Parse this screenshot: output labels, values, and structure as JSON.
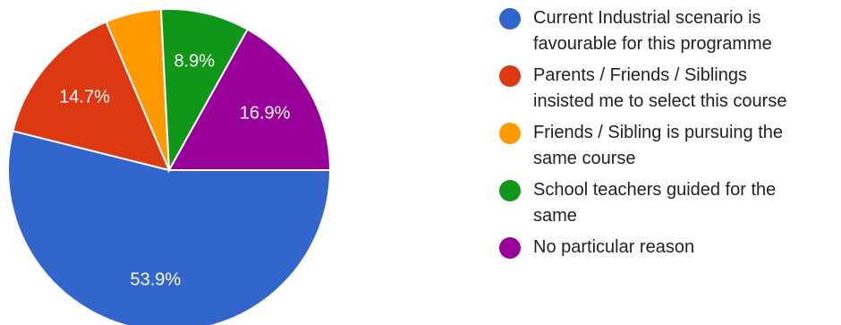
{
  "chart_data": {
    "type": "pie",
    "slices": [
      {
        "label": "Current Industrial scenario is\nfavourable for this programme",
        "value": 53.9,
        "percent_label": "53.9%",
        "color": "#3366cc"
      },
      {
        "label": "Parents / Friends / Siblings\ninsisted me to select this course",
        "value": 14.7,
        "percent_label": "14.7%",
        "color": "#dc3912"
      },
      {
        "label": "Friends / Sibling is pursuing the\nsame course",
        "value": 5.6,
        "percent_label": "",
        "color": "#ff9900"
      },
      {
        "label": "School teachers guided for the\nsame",
        "value": 8.9,
        "percent_label": "8.9%",
        "color": "#109618"
      },
      {
        "label": "No particular reason",
        "value": 16.9,
        "percent_label": "16.9%",
        "color": "#990099"
      }
    ],
    "legend_position": "right"
  }
}
